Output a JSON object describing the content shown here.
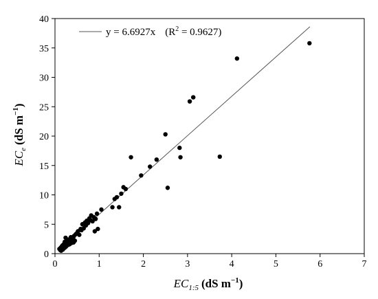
{
  "chart_data": {
    "type": "scatter",
    "xlim": [
      0,
      7
    ],
    "ylim": [
      0,
      40
    ],
    "x_ticks": [
      "0",
      "1",
      "2",
      "3",
      "4",
      "5",
      "6",
      "7"
    ],
    "y_ticks": [
      "0",
      "5",
      "10",
      "15",
      "20",
      "25",
      "30",
      "35",
      "40"
    ],
    "xlabel": {
      "main": "EC",
      "subscript": "1:5",
      "unit": "(dS m",
      "unit_superscript": "−1",
      "unit_close": ")"
    },
    "ylabel": {
      "main": "EC",
      "subscript": "e",
      "unit": "(dS m",
      "unit_superscript": "−1",
      "unit_close": ")"
    },
    "legend": {
      "equation": "y = 6.6927x",
      "r2_open": "(R",
      "r2_superscript": "2",
      "r2_close": " = 0.9627)",
      "position": "top-left"
    },
    "fit_line": {
      "slope": 6.6927,
      "x_range": [
        0.1,
        5.77
      ]
    },
    "grid": false,
    "points": [
      [
        0.1,
        0.8
      ],
      [
        0.12,
        0.6
      ],
      [
        0.13,
        1.0
      ],
      [
        0.14,
        0.5
      ],
      [
        0.15,
        1.2
      ],
      [
        0.16,
        0.9
      ],
      [
        0.17,
        1.4
      ],
      [
        0.18,
        0.7
      ],
      [
        0.19,
        1.1
      ],
      [
        0.2,
        1.6
      ],
      [
        0.21,
        1.3
      ],
      [
        0.22,
        2.0
      ],
      [
        0.22,
        1.0
      ],
      [
        0.23,
        1.5
      ],
      [
        0.24,
        2.7
      ],
      [
        0.25,
        1.2
      ],
      [
        0.26,
        1.8
      ],
      [
        0.27,
        1.4
      ],
      [
        0.28,
        2.2
      ],
      [
        0.29,
        1.7
      ],
      [
        0.3,
        1.5
      ],
      [
        0.31,
        2.4
      ],
      [
        0.32,
        1.9
      ],
      [
        0.33,
        1.6
      ],
      [
        0.35,
        2.1
      ],
      [
        0.36,
        2.8
      ],
      [
        0.37,
        1.8
      ],
      [
        0.38,
        2.3
      ],
      [
        0.4,
        2.0
      ],
      [
        0.41,
        2.6
      ],
      [
        0.42,
        1.9
      ],
      [
        0.43,
        3.0
      ],
      [
        0.45,
        2.2
      ],
      [
        0.47,
        3.3
      ],
      [
        0.5,
        3.5
      ],
      [
        0.52,
        3.8
      ],
      [
        0.55,
        3.2
      ],
      [
        0.58,
        4.2
      ],
      [
        0.6,
        4.0
      ],
      [
        0.62,
        5.0
      ],
      [
        0.65,
        4.3
      ],
      [
        0.68,
        5.3
      ],
      [
        0.7,
        4.8
      ],
      [
        0.72,
        5.6
      ],
      [
        0.75,
        5.2
      ],
      [
        0.78,
        6.0
      ],
      [
        0.8,
        5.7
      ],
      [
        0.82,
        6.5
      ],
      [
        0.85,
        5.5
      ],
      [
        0.88,
        6.2
      ],
      [
        0.9,
        3.8
      ],
      [
        0.92,
        5.9
      ],
      [
        0.95,
        6.8
      ],
      [
        0.97,
        4.2
      ],
      [
        1.05,
        7.5
      ],
      [
        1.3,
        7.9
      ],
      [
        1.35,
        9.3
      ],
      [
        1.4,
        9.6
      ],
      [
        1.45,
        7.9
      ],
      [
        1.5,
        10.2
      ],
      [
        1.55,
        11.3
      ],
      [
        1.6,
        11.0
      ],
      [
        1.72,
        16.4
      ],
      [
        1.95,
        13.3
      ],
      [
        2.15,
        14.8
      ],
      [
        2.3,
        16.0
      ],
      [
        2.5,
        20.3
      ],
      [
        2.55,
        11.2
      ],
      [
        2.82,
        18.0
      ],
      [
        2.84,
        16.4
      ],
      [
        3.05,
        25.9
      ],
      [
        3.13,
        26.6
      ],
      [
        3.73,
        16.5
      ],
      [
        4.12,
        33.2
      ],
      [
        5.76,
        35.8
      ]
    ]
  }
}
